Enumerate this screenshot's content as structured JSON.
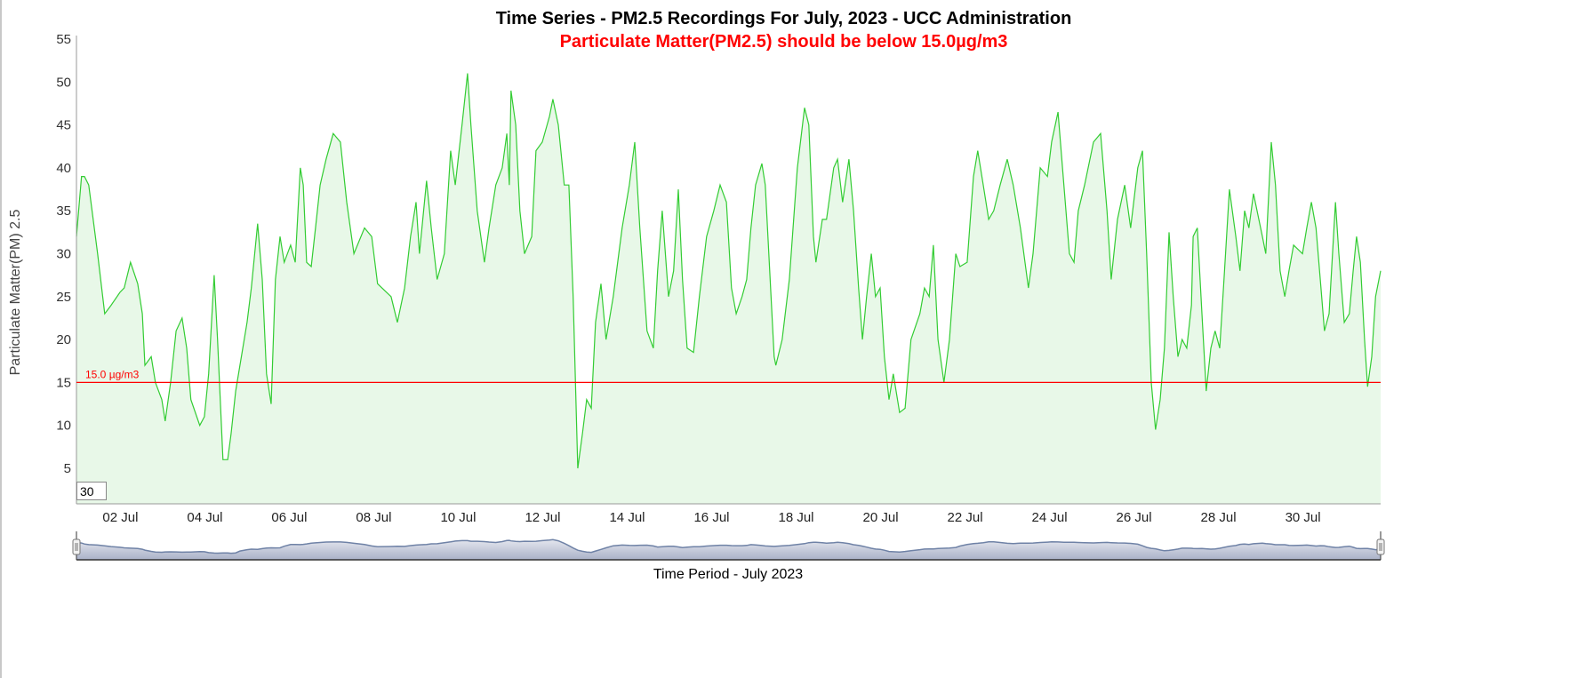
{
  "chart_data": {
    "type": "area",
    "title": "Time Series - PM2.5 Recordings For July, 2023 - UCC Administration",
    "subtitle": "Particulate Matter(PM2.5) should be below 15.0µg/m3",
    "xlabel": "Time Period - July 2023",
    "ylabel": "Particulate Matter(PM) 2.5",
    "xlim": [
      0.96,
      31.84
    ],
    "ylim": [
      1,
      55
    ],
    "y_ticks": [
      5,
      10,
      15,
      20,
      25,
      30,
      35,
      40,
      45,
      50,
      55
    ],
    "x_ticks": [
      {
        "day": 2,
        "label": "02 Jul"
      },
      {
        "day": 4,
        "label": "04 Jul"
      },
      {
        "day": 6,
        "label": "06 Jul"
      },
      {
        "day": 8,
        "label": "08 Jul"
      },
      {
        "day": 10,
        "label": "10 Jul"
      },
      {
        "day": 12,
        "label": "12 Jul"
      },
      {
        "day": 14,
        "label": "14 Jul"
      },
      {
        "day": 16,
        "label": "16 Jul"
      },
      {
        "day": 18,
        "label": "18 Jul"
      },
      {
        "day": 20,
        "label": "20 Jul"
      },
      {
        "day": 22,
        "label": "22 Jul"
      },
      {
        "day": 24,
        "label": "24 Jul"
      },
      {
        "day": 26,
        "label": "26 Jul"
      },
      {
        "day": 28,
        "label": "28 Jul"
      },
      {
        "day": 30,
        "label": "30 Jul"
      }
    ],
    "threshold": {
      "value": 15.0,
      "label": "15.0 µg/m3",
      "color": "#ff0000"
    },
    "grid": false,
    "legend": "none",
    "series": [
      {
        "name": "PM2.5",
        "color": "#33cc33",
        "fill": "#e8f8e8",
        "points": [
          [
            0.96,
            32
          ],
          [
            1.08,
            39
          ],
          [
            1.15,
            39
          ],
          [
            1.25,
            38
          ],
          [
            1.46,
            30
          ],
          [
            1.63,
            23
          ],
          [
            1.78,
            24
          ],
          [
            1.99,
            25.5
          ],
          [
            2.09,
            26
          ],
          [
            2.24,
            29
          ],
          [
            2.41,
            26.5
          ],
          [
            2.52,
            23
          ],
          [
            2.58,
            17
          ],
          [
            2.73,
            18
          ],
          [
            2.83,
            15
          ],
          [
            2.98,
            13
          ],
          [
            3.06,
            10.5
          ],
          [
            3.19,
            15
          ],
          [
            3.32,
            21
          ],
          [
            3.46,
            22.5
          ],
          [
            3.57,
            19
          ],
          [
            3.67,
            13
          ],
          [
            3.88,
            10
          ],
          [
            3.99,
            11
          ],
          [
            4.09,
            16
          ],
          [
            4.22,
            27.5
          ],
          [
            4.3,
            20
          ],
          [
            4.43,
            6
          ],
          [
            4.54,
            6
          ],
          [
            4.62,
            9
          ],
          [
            4.73,
            14
          ],
          [
            4.83,
            17
          ],
          [
            5.0,
            22
          ],
          [
            5.1,
            26
          ],
          [
            5.25,
            33.5
          ],
          [
            5.36,
            27
          ],
          [
            5.46,
            16
          ],
          [
            5.57,
            12.5
          ],
          [
            5.67,
            27
          ],
          [
            5.78,
            32
          ],
          [
            5.88,
            29
          ],
          [
            6.03,
            31
          ],
          [
            6.14,
            29
          ],
          [
            6.26,
            40
          ],
          [
            6.33,
            38
          ],
          [
            6.41,
            29
          ],
          [
            6.52,
            28.5
          ],
          [
            6.62,
            33
          ],
          [
            6.73,
            38
          ],
          [
            6.87,
            41
          ],
          [
            7.04,
            44
          ],
          [
            7.21,
            43
          ],
          [
            7.36,
            36
          ],
          [
            7.53,
            30
          ],
          [
            7.78,
            33
          ],
          [
            7.95,
            32
          ],
          [
            8.09,
            26.5
          ],
          [
            8.41,
            25
          ],
          [
            8.56,
            22
          ],
          [
            8.73,
            26
          ],
          [
            8.87,
            32
          ],
          [
            9.0,
            36
          ],
          [
            9.08,
            30
          ],
          [
            9.25,
            38.5
          ],
          [
            9.36,
            33
          ],
          [
            9.5,
            27
          ],
          [
            9.67,
            30
          ],
          [
            9.82,
            42
          ],
          [
            9.93,
            38
          ],
          [
            10.09,
            45
          ],
          [
            10.22,
            51
          ],
          [
            10.3,
            45
          ],
          [
            10.45,
            35
          ],
          [
            10.62,
            29
          ],
          [
            10.73,
            33
          ],
          [
            10.89,
            38
          ],
          [
            11.04,
            40
          ],
          [
            11.15,
            44
          ],
          [
            11.21,
            38
          ],
          [
            11.25,
            49
          ],
          [
            11.36,
            45
          ],
          [
            11.46,
            35
          ],
          [
            11.57,
            30
          ],
          [
            11.74,
            32
          ],
          [
            11.84,
            42
          ],
          [
            11.99,
            43
          ],
          [
            12.16,
            46
          ],
          [
            12.24,
            48
          ],
          [
            12.37,
            45
          ],
          [
            12.51,
            38
          ],
          [
            12.62,
            38
          ],
          [
            12.72,
            25
          ],
          [
            12.83,
            5
          ],
          [
            12.94,
            9
          ],
          [
            13.04,
            13
          ],
          [
            13.15,
            12
          ],
          [
            13.25,
            22
          ],
          [
            13.38,
            26.5
          ],
          [
            13.5,
            20
          ],
          [
            13.67,
            25
          ],
          [
            13.88,
            33
          ],
          [
            14.05,
            38
          ],
          [
            14.18,
            43
          ],
          [
            14.3,
            33
          ],
          [
            14.47,
            21
          ],
          [
            14.62,
            19
          ],
          [
            14.72,
            28
          ],
          [
            14.83,
            35
          ],
          [
            14.98,
            25
          ],
          [
            15.1,
            28
          ],
          [
            15.21,
            37.5
          ],
          [
            15.31,
            27
          ],
          [
            15.42,
            19
          ],
          [
            15.57,
            18.5
          ],
          [
            15.71,
            25
          ],
          [
            15.88,
            32
          ],
          [
            16.05,
            35
          ],
          [
            16.2,
            38
          ],
          [
            16.35,
            36
          ],
          [
            16.47,
            26
          ],
          [
            16.58,
            23
          ],
          [
            16.72,
            25
          ],
          [
            16.83,
            27
          ],
          [
            16.93,
            33
          ],
          [
            17.04,
            38
          ],
          [
            17.19,
            40.5
          ],
          [
            17.27,
            38
          ],
          [
            17.48,
            18
          ],
          [
            17.52,
            17
          ],
          [
            17.67,
            20
          ],
          [
            17.84,
            27
          ],
          [
            18.03,
            40
          ],
          [
            18.2,
            47
          ],
          [
            18.3,
            45
          ],
          [
            18.41,
            32
          ],
          [
            18.47,
            29
          ],
          [
            18.62,
            34
          ],
          [
            18.72,
            34
          ],
          [
            18.89,
            40
          ],
          [
            18.98,
            41
          ],
          [
            19.1,
            36
          ],
          [
            19.25,
            41
          ],
          [
            19.36,
            35
          ],
          [
            19.48,
            26
          ],
          [
            19.57,
            20
          ],
          [
            19.67,
            25
          ],
          [
            19.78,
            30
          ],
          [
            19.88,
            25
          ],
          [
            19.99,
            26
          ],
          [
            20.09,
            18
          ],
          [
            20.2,
            13
          ],
          [
            20.3,
            16
          ],
          [
            20.45,
            11.5
          ],
          [
            20.58,
            12
          ],
          [
            20.72,
            20
          ],
          [
            20.93,
            23
          ],
          [
            21.04,
            26
          ],
          [
            21.15,
            25
          ],
          [
            21.25,
            31
          ],
          [
            21.36,
            20
          ],
          [
            21.5,
            15
          ],
          [
            21.63,
            20
          ],
          [
            21.78,
            30
          ],
          [
            21.88,
            28.5
          ],
          [
            22.05,
            29
          ],
          [
            22.2,
            39
          ],
          [
            22.3,
            42
          ],
          [
            22.43,
            38
          ],
          [
            22.56,
            34
          ],
          [
            22.68,
            35
          ],
          [
            22.83,
            38
          ],
          [
            23.0,
            41
          ],
          [
            23.14,
            38
          ],
          [
            23.31,
            33
          ],
          [
            23.5,
            26
          ],
          [
            23.61,
            30
          ],
          [
            23.78,
            40
          ],
          [
            23.95,
            39
          ],
          [
            24.05,
            43
          ],
          [
            24.2,
            46.5
          ],
          [
            24.34,
            38
          ],
          [
            24.47,
            30
          ],
          [
            24.58,
            29
          ],
          [
            24.68,
            35
          ],
          [
            24.83,
            38
          ],
          [
            25.04,
            43
          ],
          [
            25.21,
            44
          ],
          [
            25.36,
            35
          ],
          [
            25.46,
            27
          ],
          [
            25.61,
            34
          ],
          [
            25.78,
            38
          ],
          [
            25.92,
            33
          ],
          [
            26.09,
            40
          ],
          [
            26.2,
            42
          ],
          [
            26.3,
            30
          ],
          [
            26.41,
            15
          ],
          [
            26.51,
            9.5
          ],
          [
            26.62,
            13
          ],
          [
            26.72,
            19
          ],
          [
            26.83,
            32.5
          ],
          [
            26.93,
            25
          ],
          [
            27.04,
            18
          ],
          [
            27.14,
            20
          ],
          [
            27.25,
            19
          ],
          [
            27.36,
            24
          ],
          [
            27.4,
            32
          ],
          [
            27.5,
            33
          ],
          [
            27.61,
            23
          ],
          [
            27.71,
            14
          ],
          [
            27.82,
            19
          ],
          [
            27.92,
            21
          ],
          [
            28.03,
            19
          ],
          [
            28.13,
            27
          ],
          [
            28.26,
            37.5
          ],
          [
            28.41,
            32
          ],
          [
            28.51,
            28
          ],
          [
            28.62,
            35
          ],
          [
            28.72,
            33
          ],
          [
            28.83,
            37
          ],
          [
            29.04,
            32
          ],
          [
            29.12,
            30
          ],
          [
            29.25,
            43
          ],
          [
            29.35,
            38
          ],
          [
            29.46,
            28
          ],
          [
            29.57,
            25
          ],
          [
            29.67,
            28
          ],
          [
            29.78,
            31
          ],
          [
            29.99,
            30
          ],
          [
            30.09,
            33
          ],
          [
            30.2,
            36
          ],
          [
            30.31,
            33
          ],
          [
            30.41,
            27
          ],
          [
            30.51,
            21
          ],
          [
            30.62,
            23
          ],
          [
            30.77,
            36
          ],
          [
            30.85,
            30
          ],
          [
            30.98,
            22
          ],
          [
            31.1,
            23
          ],
          [
            31.19,
            28
          ],
          [
            31.27,
            32
          ],
          [
            31.36,
            29
          ],
          [
            31.46,
            20
          ],
          [
            31.53,
            14.5
          ],
          [
            31.63,
            18
          ],
          [
            31.72,
            25
          ],
          [
            31.84,
            28
          ]
        ]
      }
    ],
    "rolling_window_input": "30"
  }
}
